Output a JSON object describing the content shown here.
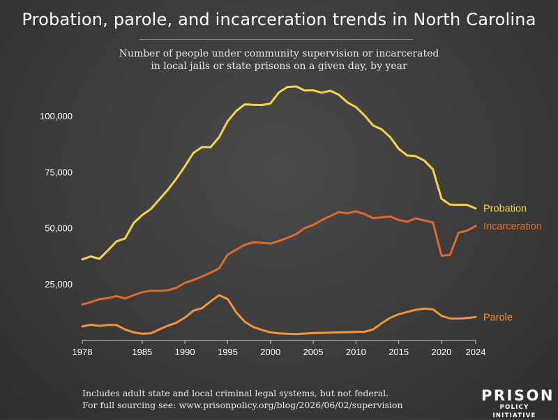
{
  "title": "Probation, parole, and incarceration trends in North Carolina",
  "subtitle": {
    "line1": "Number of people under community supervision or incarcerated",
    "line2": "in local jails or state prisons on a given day, by year"
  },
  "notes": {
    "line1": "Includes adult state and local criminal legal systems, but not federal.",
    "line2": "For full sourcing see: www.prisonpolicy.org/blog/2026/06/02/supervision"
  },
  "logo": {
    "line1": "PRISON",
    "line2": "POLICY INITIATIVE"
  },
  "colors": {
    "background": "#3a3a3a",
    "probation": "#f5d547",
    "incarceration": "#e06a2b",
    "parole": "#f2953a",
    "text": "#ffffff",
    "axis": "#cccccc"
  },
  "chart_data": {
    "type": "line",
    "xlim": [
      1978,
      2024
    ],
    "ylim": [
      0,
      115000
    ],
    "x_ticks": [
      1978,
      1985,
      1990,
      1995,
      2000,
      2005,
      2010,
      2015,
      2020,
      2024
    ],
    "y_ticks": [
      25000,
      50000,
      75000,
      100000
    ],
    "y_tick_labels": [
      "25,000",
      "50,000",
      "75,000",
      "100,000"
    ],
    "grid": false,
    "legend": "inline labels at right end of lines",
    "series": [
      {
        "name": "Probation",
        "color": "#f5d547",
        "x": [
          1978,
          1979,
          1980,
          1981,
          1982,
          1983,
          1984,
          1985,
          1986,
          1987,
          1988,
          1989,
          1990,
          1991,
          1992,
          1993,
          1994,
          1995,
          1996,
          1997,
          1998,
          1999,
          2000,
          2001,
          2002,
          2003,
          2004,
          2005,
          2006,
          2007,
          2008,
          2009,
          2010,
          2011,
          2012,
          2013,
          2014,
          2015,
          2016,
          2017,
          2018,
          2019,
          2020,
          2021,
          2022,
          2023,
          2024
        ],
        "values": [
          36300,
          37600,
          36500,
          40300,
          44300,
          45600,
          52500,
          56000,
          58700,
          63000,
          67300,
          72300,
          77800,
          83800,
          86400,
          86300,
          90800,
          97900,
          102500,
          105400,
          105200,
          105100,
          105800,
          110800,
          113200,
          113400,
          111600,
          111700,
          110600,
          111500,
          109700,
          106300,
          104200,
          100500,
          96000,
          94300,
          90800,
          85600,
          82600,
          82300,
          80300,
          76400,
          63300,
          60700,
          60600,
          60600,
          59000
        ]
      },
      {
        "name": "Incarceration",
        "color": "#e06a2b",
        "x": [
          1978,
          1979,
          1980,
          1981,
          1982,
          1983,
          1984,
          1985,
          1986,
          1987,
          1988,
          1989,
          1990,
          1991,
          1992,
          1993,
          1994,
          1995,
          1996,
          1997,
          1998,
          1999,
          2000,
          2001,
          2002,
          2003,
          2004,
          2005,
          2006,
          2007,
          2008,
          2009,
          2010,
          2011,
          2012,
          2013,
          2014,
          2015,
          2016,
          2017,
          2018,
          2019,
          2020,
          2021,
          2022,
          2023,
          2024
        ],
        "values": [
          16200,
          17200,
          18500,
          19000,
          19900,
          18800,
          20300,
          21600,
          22300,
          22200,
          22500,
          23600,
          25800,
          27100,
          28600,
          30300,
          32300,
          38400,
          40600,
          42800,
          43900,
          43700,
          43300,
          44500,
          45900,
          47500,
          50200,
          51600,
          53800,
          55600,
          57400,
          56800,
          57700,
          56500,
          54700,
          55000,
          55400,
          53800,
          53100,
          54600,
          53600,
          52800,
          37900,
          38300,
          48200,
          49100,
          51200
        ]
      },
      {
        "name": "Parole",
        "color": "#f2953a",
        "x": [
          1978,
          1979,
          1980,
          1981,
          1982,
          1983,
          1984,
          1985,
          1986,
          1987,
          1988,
          1989,
          1990,
          1991,
          1992,
          1993,
          1994,
          1995,
          1996,
          1997,
          1998,
          1999,
          2000,
          2001,
          2002,
          2003,
          2004,
          2005,
          2006,
          2007,
          2008,
          2009,
          2010,
          2011,
          2012,
          2013,
          2014,
          2015,
          2016,
          2017,
          2018,
          2019,
          2020,
          2021,
          2022,
          2023,
          2024
        ],
        "values": [
          6400,
          7100,
          6600,
          7000,
          7000,
          5000,
          3700,
          3100,
          3300,
          5000,
          6700,
          8000,
          10300,
          13400,
          14500,
          17500,
          20300,
          18600,
          12600,
          8400,
          6100,
          4800,
          3700,
          3300,
          3100,
          3000,
          3200,
          3400,
          3500,
          3600,
          3700,
          3800,
          3900,
          4000,
          5000,
          7800,
          10200,
          11800,
          12800,
          13800,
          14300,
          14000,
          11100,
          9900,
          9800,
          10100,
          10600
        ]
      }
    ]
  }
}
